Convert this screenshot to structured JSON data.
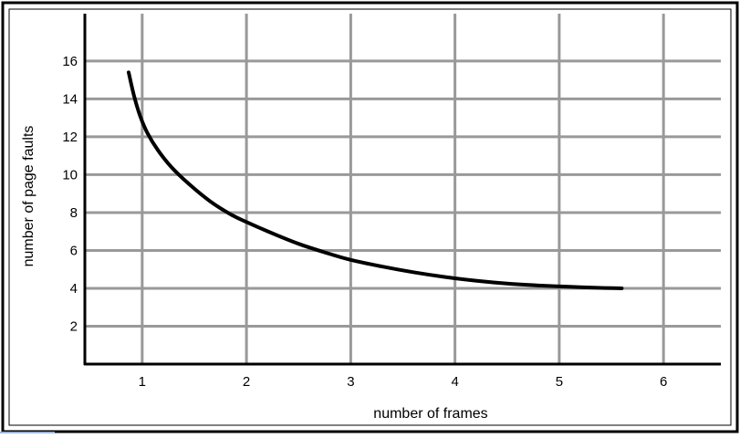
{
  "chart_data": {
    "type": "line",
    "title": "",
    "xlabel": "number of frames",
    "ylabel": "number of page faults",
    "xlim": [
      0.45,
      6.55
    ],
    "ylim": [
      0,
      18.5
    ],
    "x_ticks": [
      1,
      2,
      3,
      4,
      5,
      6
    ],
    "y_ticks": [
      2,
      4,
      6,
      8,
      10,
      12,
      14,
      16
    ],
    "grid": true,
    "legend": "none",
    "series": [
      {
        "line_color": "#000000",
        "x": [
          0.87,
          0.92,
          0.98,
          1.05,
          1.15,
          1.28,
          1.45,
          1.65,
          1.85,
          2.0,
          2.25,
          2.5,
          2.75,
          3.0,
          3.3,
          3.6,
          3.9,
          4.2,
          4.5,
          4.8,
          5.1,
          5.4,
          5.6
        ],
        "y": [
          15.4,
          14.2,
          13.1,
          12.2,
          11.3,
          10.4,
          9.5,
          8.6,
          7.9,
          7.5,
          6.9,
          6.35,
          5.9,
          5.5,
          5.15,
          4.85,
          4.6,
          4.4,
          4.25,
          4.15,
          4.08,
          4.02,
          4.0
        ]
      }
    ],
    "colors": {
      "grid": "#999999",
      "frame": "#000000",
      "background": "#ffffff",
      "accent": "#9db3d6"
    }
  }
}
